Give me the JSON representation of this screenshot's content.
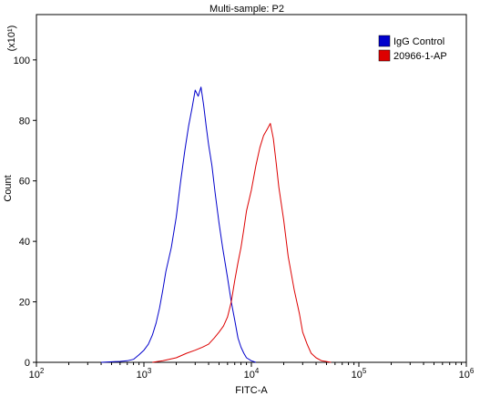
{
  "chart_data": {
    "type": "line",
    "title": "Multi-sample: P2",
    "xlabel": "FITC-A",
    "ylabel": "Count",
    "y_multiplier": "(x10¹)",
    "x_scale": "log",
    "xlim": [
      100,
      1000000
    ],
    "ylim": [
      0,
      115
    ],
    "x_ticks": [
      {
        "value": 100,
        "base": "10",
        "exp": "2"
      },
      {
        "value": 1000,
        "base": "10",
        "exp": "3"
      },
      {
        "value": 10000,
        "base": "10",
        "exp": "4"
      },
      {
        "value": 100000,
        "base": "10",
        "exp": "5"
      },
      {
        "value": 1000000,
        "base": "10",
        "exp": "6"
      }
    ],
    "y_ticks": [
      0,
      20,
      40,
      60,
      80,
      100
    ],
    "legend_position": "top-right",
    "series": [
      {
        "name": "IgG Control",
        "color": "#0000cc",
        "points": [
          [
            400,
            0
          ],
          [
            600,
            0.3
          ],
          [
            700,
            0.5
          ],
          [
            800,
            1
          ],
          [
            900,
            2.5
          ],
          [
            1000,
            4
          ],
          [
            1100,
            6
          ],
          [
            1200,
            9
          ],
          [
            1300,
            13
          ],
          [
            1400,
            18
          ],
          [
            1500,
            24
          ],
          [
            1600,
            30
          ],
          [
            1800,
            38
          ],
          [
            2000,
            48
          ],
          [
            2200,
            60
          ],
          [
            2400,
            70
          ],
          [
            2600,
            78
          ],
          [
            2800,
            84
          ],
          [
            3000,
            90
          ],
          [
            3200,
            88
          ],
          [
            3400,
            91
          ],
          [
            3600,
            85
          ],
          [
            3800,
            78
          ],
          [
            4000,
            72
          ],
          [
            4300,
            65
          ],
          [
            4600,
            56
          ],
          [
            5000,
            46
          ],
          [
            5400,
            38
          ],
          [
            6000,
            28
          ],
          [
            6500,
            20
          ],
          [
            7000,
            14
          ],
          [
            7500,
            8
          ],
          [
            8000,
            5
          ],
          [
            8500,
            3
          ],
          [
            9000,
            1.5
          ],
          [
            10000,
            0.5
          ],
          [
            11000,
            0
          ]
        ]
      },
      {
        "name": "20966-1-AP",
        "color": "#dd0000",
        "points": [
          [
            1200,
            0
          ],
          [
            1500,
            0.5
          ],
          [
            2000,
            1.5
          ],
          [
            2500,
            3
          ],
          [
            3000,
            4
          ],
          [
            3500,
            5
          ],
          [
            4000,
            6
          ],
          [
            4500,
            8
          ],
          [
            5000,
            10
          ],
          [
            5500,
            12
          ],
          [
            6000,
            15
          ],
          [
            6500,
            20
          ],
          [
            7000,
            27
          ],
          [
            7500,
            33
          ],
          [
            8000,
            38
          ],
          [
            8500,
            44
          ],
          [
            9000,
            50
          ],
          [
            10000,
            57
          ],
          [
            11000,
            65
          ],
          [
            12000,
            71
          ],
          [
            13000,
            75
          ],
          [
            14000,
            77
          ],
          [
            15000,
            79
          ],
          [
            16000,
            74
          ],
          [
            17000,
            66
          ],
          [
            18000,
            58
          ],
          [
            20000,
            47
          ],
          [
            22000,
            35
          ],
          [
            25000,
            24
          ],
          [
            28000,
            16
          ],
          [
            30000,
            10
          ],
          [
            33000,
            6
          ],
          [
            36000,
            3
          ],
          [
            40000,
            1.5
          ],
          [
            45000,
            0.5
          ],
          [
            55000,
            0
          ]
        ]
      }
    ]
  }
}
